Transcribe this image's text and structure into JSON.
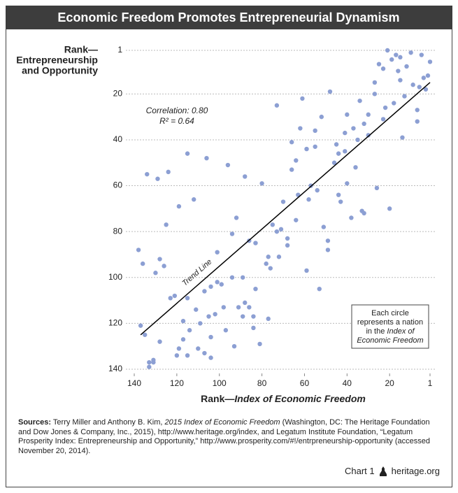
{
  "chart_data": {
    "type": "scatter",
    "title": "Economic Freedom Promotes Entrepreneurial Dynamism",
    "y_label": [
      "Rank—",
      "Entrepreneurship",
      "and Opportunity"
    ],
    "x_label": [
      {
        "text": "Rank—",
        "italic": false
      },
      {
        "text": "Index of Economic Freedom",
        "italic": true
      }
    ],
    "color": "#8c9fd3",
    "x": [
      21,
      17,
      19,
      15,
      10,
      5,
      1,
      25,
      23,
      16,
      12,
      2,
      4,
      15,
      9,
      6,
      3,
      27,
      13,
      27,
      48,
      34,
      18,
      22,
      7,
      73,
      61,
      40,
      52,
      30,
      23,
      7,
      62,
      55,
      41,
      32,
      37,
      30,
      35,
      14,
      66,
      41,
      44,
      59,
      55,
      45,
      46,
      64,
      66,
      36,
      57,
      54,
      40,
      26,
      20,
      44,
      43,
      63,
      58,
      33,
      32,
      38,
      70,
      64,
      75,
      73,
      71,
      51,
      68,
      68,
      72,
      49,
      49,
      59,
      53,
      77,
      78,
      76,
      83,
      86,
      80,
      88,
      96,
      106,
      115,
      134,
      124,
      129,
      119,
      112,
      92,
      94,
      101,
      125,
      138,
      136,
      128,
      126,
      130,
      101,
      99,
      94,
      89,
      107,
      104,
      115,
      121,
      123,
      111,
      98,
      91,
      88,
      86,
      83,
      84,
      89,
      77,
      105,
      102,
      117,
      109,
      97,
      84,
      114,
      137,
      135,
      117,
      128,
      104,
      119,
      110,
      107,
      115,
      120,
      104,
      93,
      81,
      133,
      131,
      133,
      131
    ],
    "y": [
      1,
      3,
      5,
      4,
      2,
      3,
      6,
      7,
      9,
      10,
      8,
      12,
      13,
      14,
      16,
      17,
      18,
      15,
      21,
      20,
      19,
      23,
      24,
      26,
      27,
      25,
      22,
      29,
      30,
      29,
      31,
      32,
      35,
      36,
      37,
      33,
      35,
      38,
      40,
      39,
      41,
      45,
      46,
      44,
      43,
      42,
      50,
      49,
      53,
      52,
      60,
      62,
      59,
      61,
      70,
      64,
      67,
      64,
      66,
      71,
      72,
      74,
      67,
      75,
      77,
      80,
      79,
      78,
      83,
      86,
      91,
      84,
      88,
      97,
      105,
      91,
      94,
      96,
      85,
      84,
      59,
      56,
      51,
      48,
      46,
      55,
      54,
      57,
      69,
      66,
      74,
      81,
      89,
      77,
      88,
      94,
      92,
      95,
      98,
      102,
      103,
      100,
      100,
      106,
      104,
      109,
      108,
      109,
      114,
      113,
      113,
      111,
      113,
      105,
      117,
      117,
      118,
      117,
      116,
      119,
      120,
      123,
      122,
      123,
      121,
      125,
      127,
      128,
      126,
      131,
      131,
      133,
      134,
      134,
      135,
      130,
      129,
      137,
      137,
      139,
      136
    ],
    "xlim": [
      140,
      1
    ],
    "ylim": [
      1,
      140
    ],
    "xticks": [
      140,
      120,
      100,
      80,
      60,
      40,
      20,
      1
    ],
    "yticks": [
      1,
      20,
      40,
      60,
      80,
      100,
      120,
      140
    ],
    "grid": true,
    "trend_line": {
      "label": "Trend Line",
      "x": [
        137,
        1
      ],
      "y": [
        125,
        15
      ],
      "color": "#000000"
    },
    "annotations": [
      "Correlation: 0.80",
      "R² = 0.64"
    ],
    "note": [
      [
        {
          "text": "Each circle",
          "italic": false
        }
      ],
      [
        {
          "text": "represents a nation",
          "italic": false
        }
      ],
      [
        {
          "text": "in the ",
          "italic": false
        },
        {
          "text": "Index of",
          "italic": true
        }
      ],
      [
        {
          "text": "Economic Freedom",
          "italic": true
        }
      ]
    ]
  },
  "sources": [
    {
      "text": "Sources:",
      "bold": true,
      "italic": false
    },
    {
      "text": " Terry Miller and Anthony B. Kim, ",
      "bold": false,
      "italic": false
    },
    {
      "text": "2015 Index of Economic Freedom",
      "bold": false,
      "italic": true
    },
    {
      "text": " (Washington, DC: The Heritage Foundation and Dow Jones & Company, Inc., 2015), http://www.heritage.org/index, and Legatum Institute Foundation, “Legatum Prosperity Index: Entrepreneurship and Opportunity,” http://www.prosperity.com/#!/entrpreneurship-opportunity (accessed November 20, 2014).",
      "bold": false,
      "italic": false
    }
  ],
  "footer": {
    "chart": "Chart 1",
    "site": "heritage.org"
  }
}
